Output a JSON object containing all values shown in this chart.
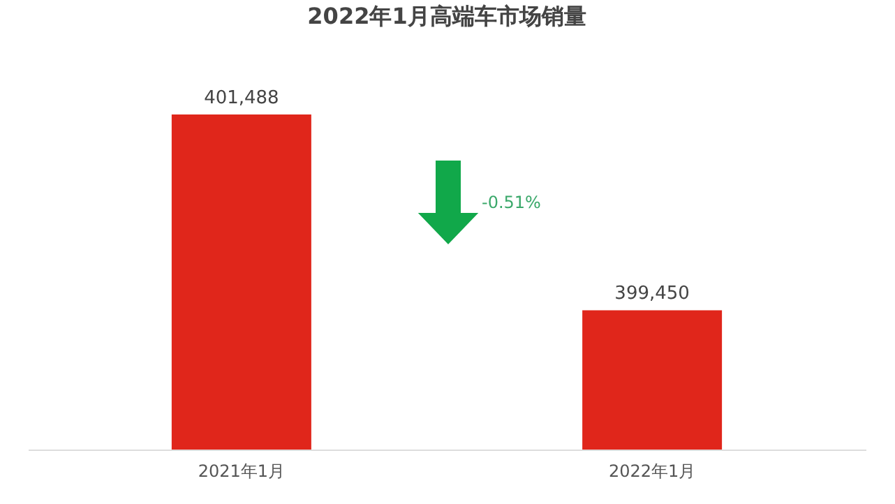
{
  "chart_data": {
    "type": "bar",
    "title": "2022年1月高端车市场销量",
    "categories": [
      "2021年1月",
      "2022年1月"
    ],
    "values": [
      401488,
      399450
    ],
    "value_labels": [
      "401,488",
      "399,450"
    ],
    "color": "#e0261b",
    "ylim": [
      398000,
      401488
    ],
    "grid": false,
    "annotations": [
      "-0.51%"
    ]
  }
}
